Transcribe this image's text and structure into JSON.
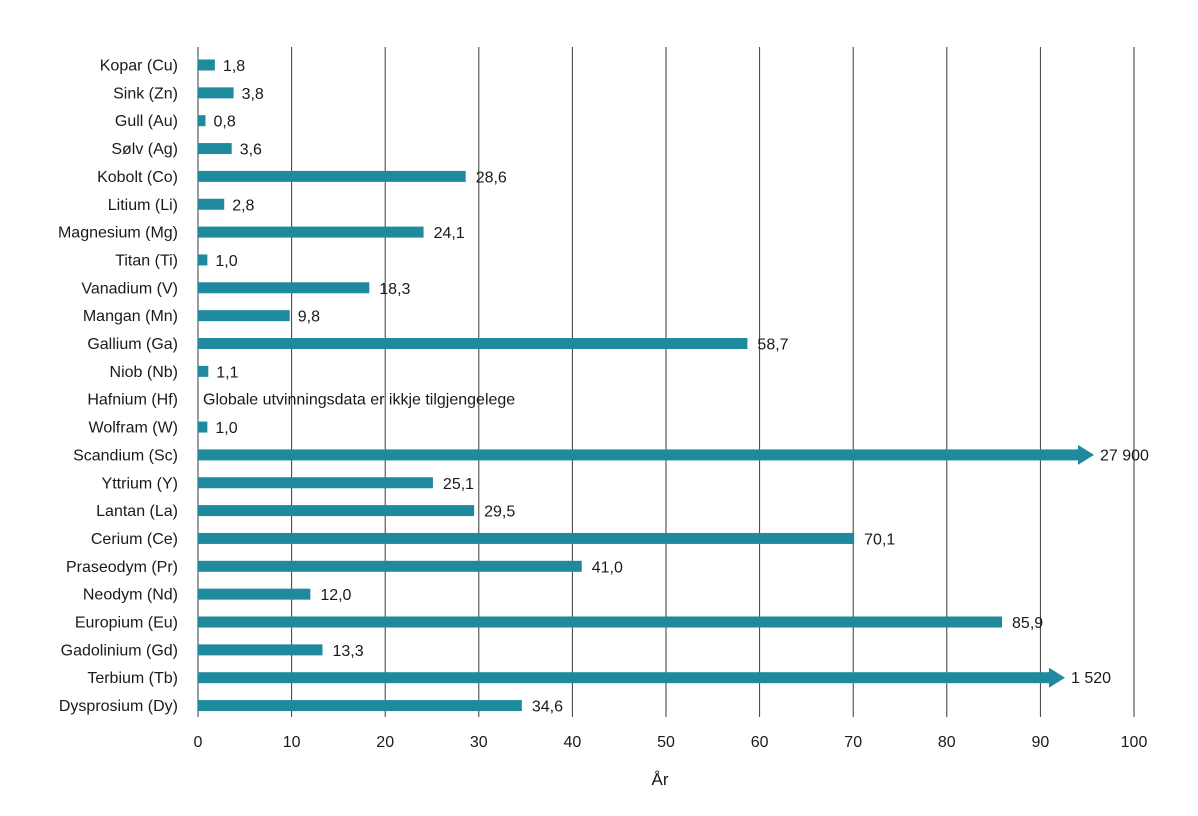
{
  "chart_data": {
    "type": "bar",
    "orientation": "horizontal",
    "title": "",
    "xlabel": "År",
    "ylabel": "",
    "xlim": [
      0,
      100
    ],
    "xticks": [
      0,
      10,
      20,
      30,
      40,
      50,
      60,
      70,
      80,
      90,
      100
    ],
    "grid": "vertical",
    "legend": "none",
    "bar_color": "#1f8a9e",
    "categories": [
      {
        "name": "Kopar (Cu)",
        "value": 1.8,
        "label": "1,8"
      },
      {
        "name": "Sink (Zn)",
        "value": 3.8,
        "label": "3,8"
      },
      {
        "name": "Gull (Au)",
        "value": 0.8,
        "label": "0,8"
      },
      {
        "name": "Sølv (Ag)",
        "value": 3.6,
        "label": "3,6"
      },
      {
        "name": "Kobolt (Co)",
        "value": 28.6,
        "label": "28,6"
      },
      {
        "name": "Litium (Li)",
        "value": 2.8,
        "label": "2,8"
      },
      {
        "name": "Magnesium (Mg)",
        "value": 24.1,
        "label": "24,1"
      },
      {
        "name": "Titan (Ti)",
        "value": 1.0,
        "label": "1,0"
      },
      {
        "name": "Vanadium (V)",
        "value": 18.3,
        "label": "18,3"
      },
      {
        "name": "Mangan (Mn)",
        "value": 9.8,
        "label": "9,8"
      },
      {
        "name": "Gallium (Ga)",
        "value": 58.7,
        "label": "58,7"
      },
      {
        "name": "Niob (Nb)",
        "value": 1.1,
        "label": "1,1"
      },
      {
        "name": "Hafnium (Hf)",
        "value": null,
        "label": "Globale utvinningsdata er ikkje tilgjengelege"
      },
      {
        "name": "Wolfram (W)",
        "value": 1.0,
        "label": "1,0"
      },
      {
        "name": "Scandium (Sc)",
        "value": 27900,
        "label": "27 900",
        "overflow": true
      },
      {
        "name": "Yttrium (Y)",
        "value": 25.1,
        "label": "25,1"
      },
      {
        "name": "Lantan (La)",
        "value": 29.5,
        "label": "29,5"
      },
      {
        "name": "Cerium (Ce)",
        "value": 70.1,
        "label": "70,1"
      },
      {
        "name": "Praseodym (Pr)",
        "value": 41.0,
        "label": "41,0"
      },
      {
        "name": "Neodym (Nd)",
        "value": 12.0,
        "label": "12,0"
      },
      {
        "name": "Europium (Eu)",
        "value": 85.9,
        "label": "85,9"
      },
      {
        "name": "Gadolinium (Gd)",
        "value": 13.3,
        "label": "13,3"
      },
      {
        "name": "Terbium (Tb)",
        "value": 1520,
        "label": "1 520",
        "overflow": true
      },
      {
        "name": "Dysprosium (Dy)",
        "value": 34.6,
        "label": "34,6"
      }
    ]
  }
}
